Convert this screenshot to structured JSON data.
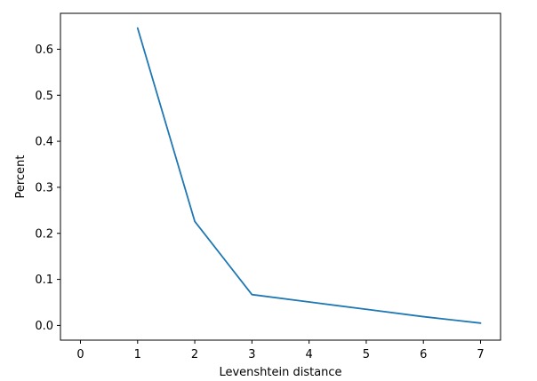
{
  "chart_data": {
    "type": "line",
    "title": "",
    "xlabel": "Levenshtein distance",
    "ylabel": "Percent",
    "xlim": [
      -0.35,
      7.35
    ],
    "ylim": [
      -0.032,
      0.678
    ],
    "xticks": [
      0,
      1,
      2,
      3,
      4,
      5,
      6,
      7
    ],
    "xtick_labels": [
      "0",
      "1",
      "2",
      "3",
      "4",
      "5",
      "6",
      "7"
    ],
    "yticks": [
      0.0,
      0.1,
      0.2,
      0.3,
      0.4,
      0.5,
      0.6
    ],
    "ytick_labels": [
      "0.0",
      "0.1",
      "0.2",
      "0.3",
      "0.4",
      "0.5",
      "0.6"
    ],
    "grid": false,
    "legend": "none",
    "series": [
      {
        "color": "#1f77b4",
        "x": [
          1,
          2,
          3,
          4,
          5,
          6,
          7
        ],
        "y": [
          0.646,
          0.226,
          0.067,
          0.051,
          0.035,
          0.019,
          0.005
        ]
      }
    ]
  }
}
